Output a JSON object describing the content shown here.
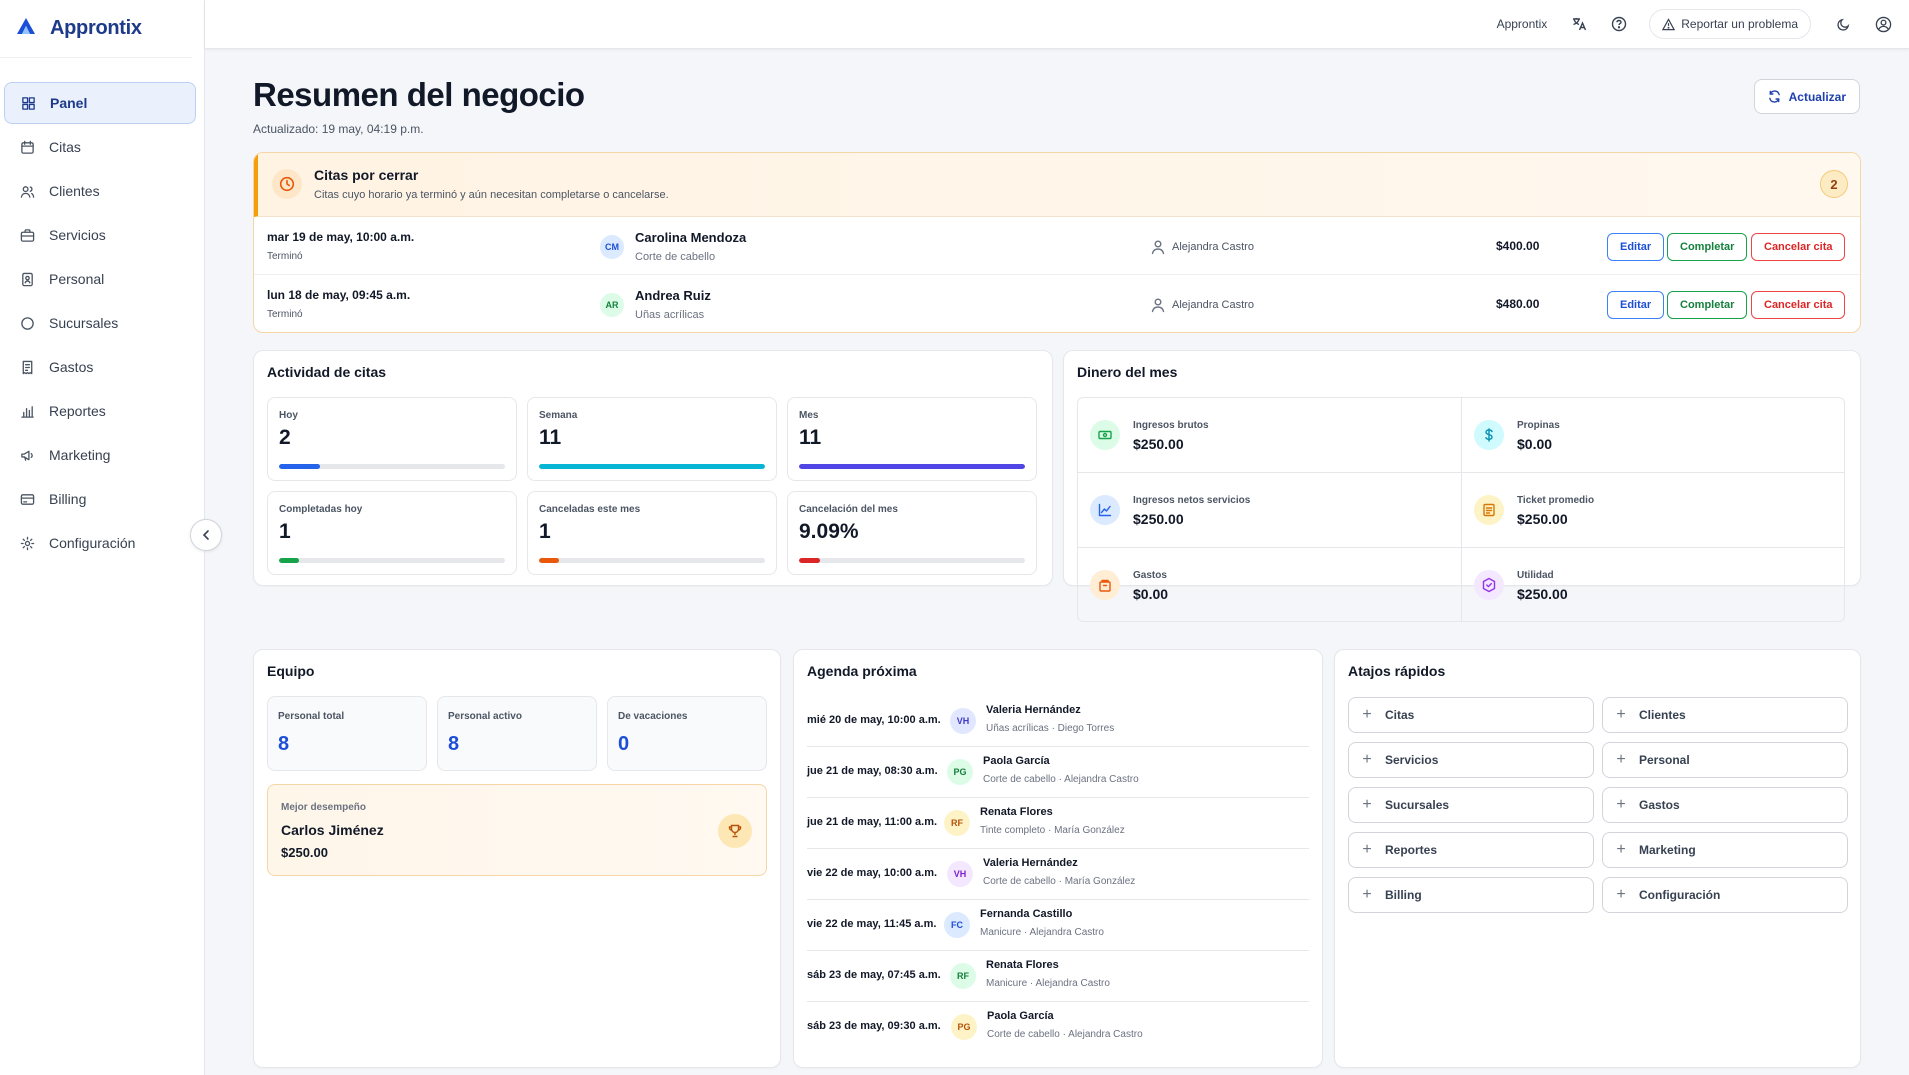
{
  "app": {
    "name": "Approntix"
  },
  "sidebar": {
    "items": [
      {
        "label": "Panel",
        "icon": "grid-icon",
        "active": true
      },
      {
        "label": "Citas",
        "icon": "calendar-icon"
      },
      {
        "label": "Clientes",
        "icon": "users-icon"
      },
      {
        "label": "Servicios",
        "icon": "briefcase-icon"
      },
      {
        "label": "Personal",
        "icon": "id-badge-icon"
      },
      {
        "label": "Sucursales",
        "icon": "circle-icon"
      },
      {
        "label": "Gastos",
        "icon": "receipt-icon"
      },
      {
        "label": "Reportes",
        "icon": "bar-chart-icon"
      },
      {
        "label": "Marketing",
        "icon": "megaphone-icon"
      },
      {
        "label": "Billing",
        "icon": "credit-card-icon"
      },
      {
        "label": "Configuración",
        "icon": "gear-icon"
      }
    ]
  },
  "topbar": {
    "app_label": "Approntix",
    "report_label": "Reportar un problema"
  },
  "header": {
    "title": "Resumen del negocio",
    "updated": "Actualizado: 19 may, 04:19 p.m.",
    "refresh_label": "Actualizar"
  },
  "alert": {
    "title": "Citas por cerrar",
    "description": "Citas cuyo horario ya terminó y aún necesitan completarse o cancelarse.",
    "count": "2",
    "edit_label": "Editar",
    "complete_label": "Completar",
    "cancel_label": "Cancelar cita",
    "rows": [
      {
        "date": "mar 19 de may, 10:00 a.m.",
        "state": "Terminó",
        "initials": "CM",
        "client": "Carolina Mendoza",
        "service": "Corte de cabello",
        "staff": "Alejandra Castro",
        "price": "$400.00"
      },
      {
        "date": "lun 18 de may, 09:45 a.m.",
        "state": "Terminó",
        "initials": "AR",
        "client": "Andrea Ruiz",
        "service": "Uñas acrílicas",
        "staff": "Alejandra Castro",
        "price": "$480.00"
      }
    ]
  },
  "activity": {
    "title": "Actividad de citas",
    "stats": [
      {
        "label": "Hoy",
        "value": "2",
        "fill": 0.18,
        "color": "#2563eb"
      },
      {
        "label": "Semana",
        "value": "11",
        "fill": 1.0,
        "color": "#06b6d4"
      },
      {
        "label": "Mes",
        "value": "11",
        "fill": 1.0,
        "color": "#4f46e5"
      },
      {
        "label": "Completadas hoy",
        "value": "1",
        "fill": 0.09,
        "color": "#16a34a"
      },
      {
        "label": "Canceladas este mes",
        "value": "1",
        "fill": 0.09,
        "color": "#ea580c"
      },
      {
        "label": "Cancelación del mes",
        "value": "9.09%",
        "fill": 0.0909,
        "color": "#dc2626"
      }
    ]
  },
  "money": {
    "title": "Dinero del mes",
    "cells": [
      {
        "label": "Ingresos brutos",
        "value": "$250.00",
        "icon": "banknote-icon",
        "bg": "#dcfce7",
        "fg": "#16a34a"
      },
      {
        "label": "Propinas",
        "value": "$0.00",
        "icon": "dollar-icon",
        "bg": "#cffafe",
        "fg": "#0891b2"
      },
      {
        "label": "Ingresos netos servicios",
        "value": "$250.00",
        "icon": "trend-chart-icon",
        "bg": "#dbeafe",
        "fg": "#2563eb"
      },
      {
        "label": "Ticket promedio",
        "value": "$250.00",
        "icon": "ticket-icon",
        "bg": "#fef3c7",
        "fg": "#d97706"
      },
      {
        "label": "Gastos",
        "value": "$0.00",
        "icon": "wallet-icon",
        "bg": "#ffedd5",
        "fg": "#ea580c"
      },
      {
        "label": "Utilidad",
        "value": "$250.00",
        "icon": "badge-check-icon",
        "bg": "#f3e8ff",
        "fg": "#9333ea"
      }
    ]
  },
  "team": {
    "title": "Equipo",
    "stats": [
      {
        "label": "Personal total",
        "value": "8"
      },
      {
        "label": "Personal activo",
        "value": "8"
      },
      {
        "label": "De vacaciones",
        "value": "0"
      }
    ],
    "best_label": "Mejor desempeño",
    "best_name": "Carlos Jiménez",
    "best_value": "$250.00"
  },
  "agenda": {
    "title": "Agenda próxima",
    "items": [
      {
        "date": "mié 20 de may, 10:00 a.m.",
        "initials": "VH",
        "name": "Valeria Hernández",
        "detail": "Uñas acrílicas · Diego Torres",
        "bg": "#e0e7ff",
        "fg": "#4338ca"
      },
      {
        "date": "jue 21 de may, 08:30 a.m.",
        "initials": "PG",
        "name": "Paola García",
        "detail": "Corte de cabello · Alejandra Castro",
        "bg": "#dcfce7",
        "fg": "#15803d"
      },
      {
        "date": "jue 21 de may, 11:00 a.m.",
        "initials": "RF",
        "name": "Renata Flores",
        "detail": "Tinte completo · María González",
        "bg": "#fef3c7",
        "fg": "#b45309"
      },
      {
        "date": "vie 22 de may, 10:00 a.m.",
        "initials": "VH",
        "name": "Valeria Hernández",
        "detail": "Corte de cabello · María González",
        "bg": "#f3e8ff",
        "fg": "#7e22ce"
      },
      {
        "date": "vie 22 de may, 11:45 a.m.",
        "initials": "FC",
        "name": "Fernanda Castillo",
        "detail": "Manicure · Alejandra Castro",
        "bg": "#dbeafe",
        "fg": "#1d4ed8"
      },
      {
        "date": "sáb 23 de may, 07:45 a.m.",
        "initials": "RF",
        "name": "Renata Flores",
        "detail": "Manicure · Alejandra Castro",
        "bg": "#dcfce7",
        "fg": "#15803d"
      },
      {
        "date": "sáb 23 de may, 09:30 a.m.",
        "initials": "PG",
        "name": "Paola García",
        "detail": "Corte de cabello · Alejandra Castro",
        "bg": "#fef3c7",
        "fg": "#b45309"
      }
    ]
  },
  "shortcuts": {
    "title": "Atajos rápidos",
    "items": [
      "Citas",
      "Clientes",
      "Servicios",
      "Personal",
      "Sucursales",
      "Gastos",
      "Reportes",
      "Marketing",
      "Billing",
      "Configuración"
    ]
  }
}
